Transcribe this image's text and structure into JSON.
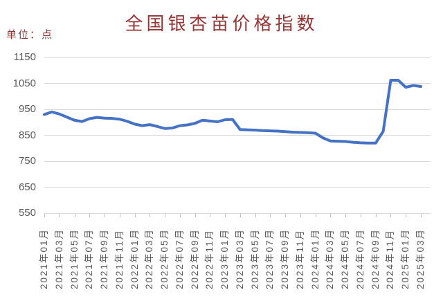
{
  "header": {
    "title": "全国银杏苗价格指数",
    "unit_label": "单位：点"
  },
  "colors": {
    "title_text": "#943634",
    "axis_labels": "#595959",
    "gridlines": "#D9D9D9",
    "series_line": "#4472C4",
    "background": "#FFFFFF"
  },
  "chart_data": {
    "type": "line",
    "title": "全国银杏苗价格指数",
    "unit": "单位：点",
    "legend": "none",
    "grid": "horizontal",
    "ylim": [
      550,
      1150
    ],
    "y_ticks": [
      550,
      650,
      750,
      850,
      950,
      1050,
      1150
    ],
    "x_tick_interval": 2,
    "x_tick_labels": [
      "2021年01月",
      "2021年03月",
      "2021年05月",
      "2021年07月",
      "2021年09月",
      "2021年11月",
      "2022年01月",
      "2022年03月",
      "2022年05月",
      "2022年07月",
      "2022年09月",
      "2022年11月",
      "2023年01月",
      "2023年03月",
      "2023年05月",
      "2023年07月",
      "2023年09月",
      "2023年11月",
      "2024年01月",
      "2024年03月",
      "2024年05月",
      "2024年07月",
      "2024年09月",
      "2024年11月",
      "2025年01月",
      "2025年03月"
    ],
    "x": [
      "2021年01月",
      "2021年02月",
      "2021年03月",
      "2021年04月",
      "2021年05月",
      "2021年06月",
      "2021年07月",
      "2021年08月",
      "2021年09月",
      "2021年10月",
      "2021年11月",
      "2021年12月",
      "2022年01月",
      "2022年02月",
      "2022年03月",
      "2022年04月",
      "2022年05月",
      "2022年06月",
      "2022年07月",
      "2022年08月",
      "2022年09月",
      "2022年10月",
      "2022年11月",
      "2022年12月",
      "2023年01月",
      "2023年02月",
      "2023年03月",
      "2023年04月",
      "2023年05月",
      "2023年06月",
      "2023年07月",
      "2023年08月",
      "2023年09月",
      "2023年10月",
      "2023年11月",
      "2023年12月",
      "2024年01月",
      "2024年02月",
      "2024年03月",
      "2024年04月",
      "2024年05月",
      "2024年06月",
      "2024年07月",
      "2024年08月",
      "2024年09月",
      "2024年10月",
      "2024年11月",
      "2024年12月",
      "2025年01月",
      "2025年02月",
      "2025年03月"
    ],
    "series": [
      {
        "name": "全国银杏苗价格指数",
        "values": [
          930,
          940,
          932,
          920,
          908,
          903,
          914,
          919,
          916,
          915,
          912,
          904,
          893,
          887,
          891,
          884,
          876,
          878,
          887,
          890,
          896,
          908,
          905,
          902,
          910,
          911,
          872,
          871,
          870,
          868,
          867,
          866,
          864,
          862,
          861,
          860,
          858,
          840,
          828,
          827,
          826,
          823,
          821,
          820,
          820,
          865,
          1062,
          1062,
          1035,
          1042,
          1038
        ]
      }
    ]
  }
}
